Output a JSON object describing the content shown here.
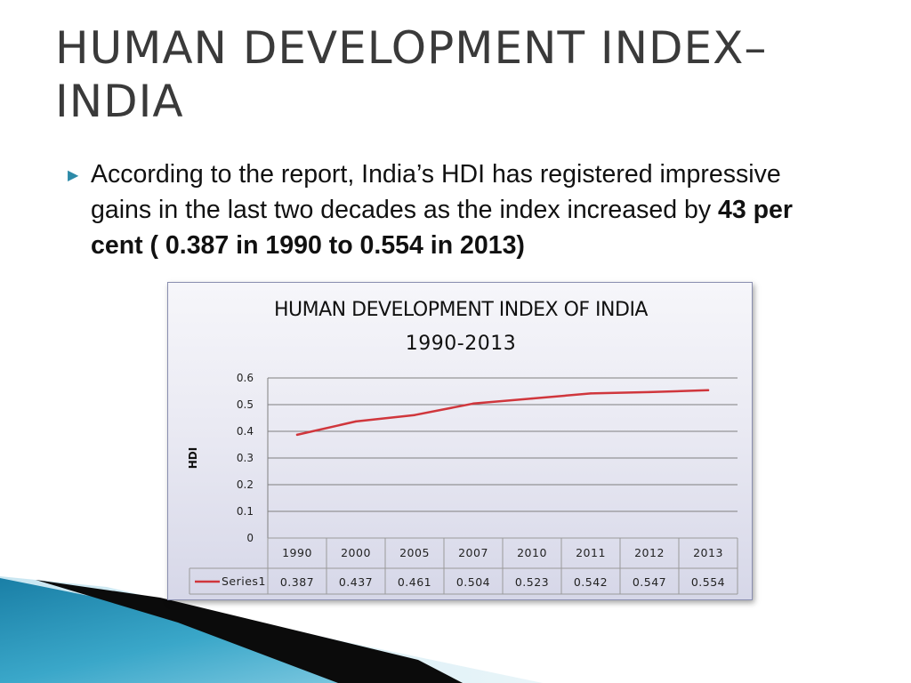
{
  "slide": {
    "title": "HUMAN DEVELOPMENT INDEX– INDIA",
    "body_prefix": "According to the report, India’s HDI has registered impressive gains in the last two decades as the index increased by ",
    "body_bold": "43 per cent ( 0.387 in 1990 to 0.554 in 2013)"
  },
  "chart_data": {
    "type": "line",
    "title": "HUMAN DEVELOPMENT INDEX OF INDIA",
    "subtitle": "1990-2013",
    "xlabel": "",
    "ylabel": "HDI",
    "ylim": [
      0,
      0.6
    ],
    "yticks": [
      "0.6",
      "0.5",
      "0.4",
      "0.3",
      "0.2",
      "0.1",
      "0"
    ],
    "categories": [
      "1990",
      "2000",
      "2005",
      "2007",
      "2010",
      "2011",
      "2012",
      "2013"
    ],
    "series": [
      {
        "name": "Series1",
        "color": "#d0363c",
        "values": [
          0.387,
          0.437,
          0.461,
          0.504,
          0.523,
          0.542,
          0.547,
          0.554
        ],
        "labels": [
          "0.387",
          "0.437",
          "0.461",
          "0.504",
          "0.523",
          "0.542",
          "0.547",
          "0.554"
        ]
      }
    ],
    "grid": true,
    "data_table": true
  }
}
